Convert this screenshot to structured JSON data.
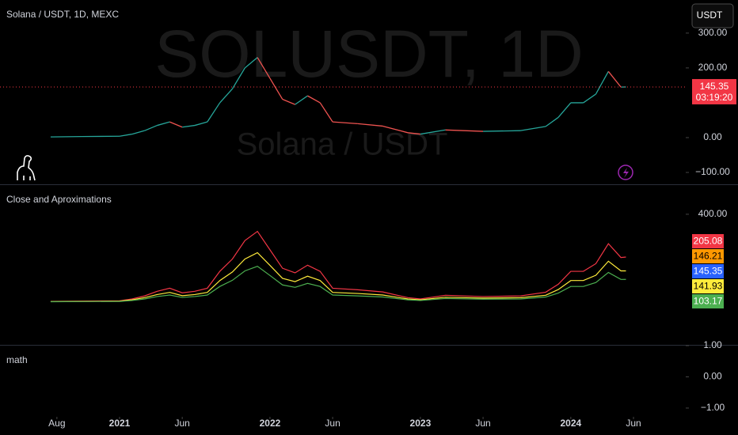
{
  "header": {
    "symbol": "Solana / USDT, 1D, MEXC",
    "watermark": "SOLUSDT, 1D",
    "watermark_sub": "Solana / USDT",
    "currency_button": "USDT"
  },
  "chart_data": [
    {
      "type": "line",
      "x": [
        6.5,
        9,
        12,
        13,
        14,
        15,
        16,
        17,
        18,
        19,
        20,
        21,
        22,
        23,
        24,
        25,
        26,
        27,
        28,
        29,
        31,
        33,
        35,
        36,
        38,
        41,
        44,
        46,
        47,
        48,
        49,
        50,
        51,
        52,
        52.4
      ],
      "xlim": [
        2.46,
        57.17
      ],
      "series": [
        {
          "color": "#26a69a",
          "down_color": "#ef5350",
          "values": [
            2,
            3,
            4,
            10,
            20,
            35,
            45,
            30,
            35,
            45,
            100,
            140,
            200,
            230,
            170,
            110,
            95,
            120,
            100,
            45,
            40,
            33,
            14,
            10,
            22,
            18,
            20,
            32,
            58,
            100,
            100,
            125,
            190,
            145,
            145.35
          ]
        }
      ],
      "ylim": [
        -134,
        395
      ],
      "yticks": [
        {
          "value": 300,
          "label": "300.00"
        },
        {
          "value": 200,
          "label": "200.00"
        },
        {
          "value": 0,
          "label": "0.00"
        },
        {
          "value": -100,
          "label": "−100.00"
        }
      ],
      "last_price": {
        "value": 145.35,
        "color": "#f23645"
      },
      "countdown": "03:19:20"
    },
    {
      "type": "line",
      "title": "Close and Aproximations",
      "x": [
        6.5,
        9,
        12,
        13,
        14,
        15,
        16,
        17,
        18,
        19,
        20,
        21,
        22,
        23,
        24,
        25,
        26,
        27,
        28,
        29,
        31,
        33,
        35,
        36,
        38,
        41,
        44,
        46,
        47,
        48,
        49,
        50,
        51,
        52,
        52.4
      ],
      "xlim": [
        2.46,
        57.17
      ],
      "series": [
        {
          "color": "#f23645",
          "values": [
            2.8,
            4.2,
            5.6,
            14,
            28,
            49,
            63,
            42,
            49,
            63,
            140,
            196,
            280,
            322,
            238,
            154,
            133,
            168,
            140,
            63,
            56,
            46,
            20,
            14,
            31,
            25,
            28,
            45,
            81,
            140,
            140,
            175,
            266,
            203,
            205.08
          ]
        },
        {
          "color": "#ffeb3b",
          "values": [
            2,
            3,
            4,
            10,
            20,
            34,
            44,
            29,
            34,
            44,
            98,
            137,
            196,
            225,
            167,
            108,
            93,
            118,
            98,
            44,
            39,
            32,
            14,
            10,
            22,
            18,
            20,
            31,
            57,
            98,
            98,
            122,
            186,
            142,
            141.93
          ]
        },
        {
          "color": "#4caf50",
          "values": [
            1.4,
            2.1,
            2.8,
            7,
            14,
            25,
            32,
            21,
            25,
            32,
            71,
            99,
            142,
            163,
            121,
            78,
            67,
            85,
            71,
            32,
            28,
            23,
            10,
            7,
            16,
            13,
            14,
            23,
            41,
            71,
            71,
            89,
            135,
            103,
            103.17
          ]
        }
      ],
      "ylim": [
        -195,
        533
      ],
      "yticks": [
        {
          "value": 400,
          "label": "400.00"
        }
      ],
      "last_values": [
        {
          "value": 205.08,
          "color": "#f23645"
        },
        {
          "value": 146.21,
          "color": "#ff9800"
        },
        {
          "value": 145.35,
          "color": "#2962ff"
        },
        {
          "value": 141.93,
          "color": "#ffeb3b"
        },
        {
          "value": 103.17,
          "color": "#4caf50"
        }
      ]
    },
    {
      "type": "empty",
      "title": "math",
      "ylim": [
        -1.28,
        1.0
      ],
      "yticks": [
        {
          "value": 1,
          "label": "1.00"
        },
        {
          "value": 0,
          "label": "0.00"
        },
        {
          "value": -1,
          "label": "−1.00"
        }
      ],
      "xlim": [
        2.46,
        57.17
      ],
      "xticks": [
        {
          "value": 7,
          "label": "Aug"
        },
        {
          "value": 12,
          "label": "2021"
        },
        {
          "value": 17,
          "label": "Jun"
        },
        {
          "value": 24,
          "label": "2022"
        },
        {
          "value": 29,
          "label": "Jun"
        },
        {
          "value": 36,
          "label": "2023"
        },
        {
          "value": 41,
          "label": "Jun"
        },
        {
          "value": 48,
          "label": "2024"
        },
        {
          "value": 53,
          "label": "Jun"
        }
      ]
    }
  ]
}
